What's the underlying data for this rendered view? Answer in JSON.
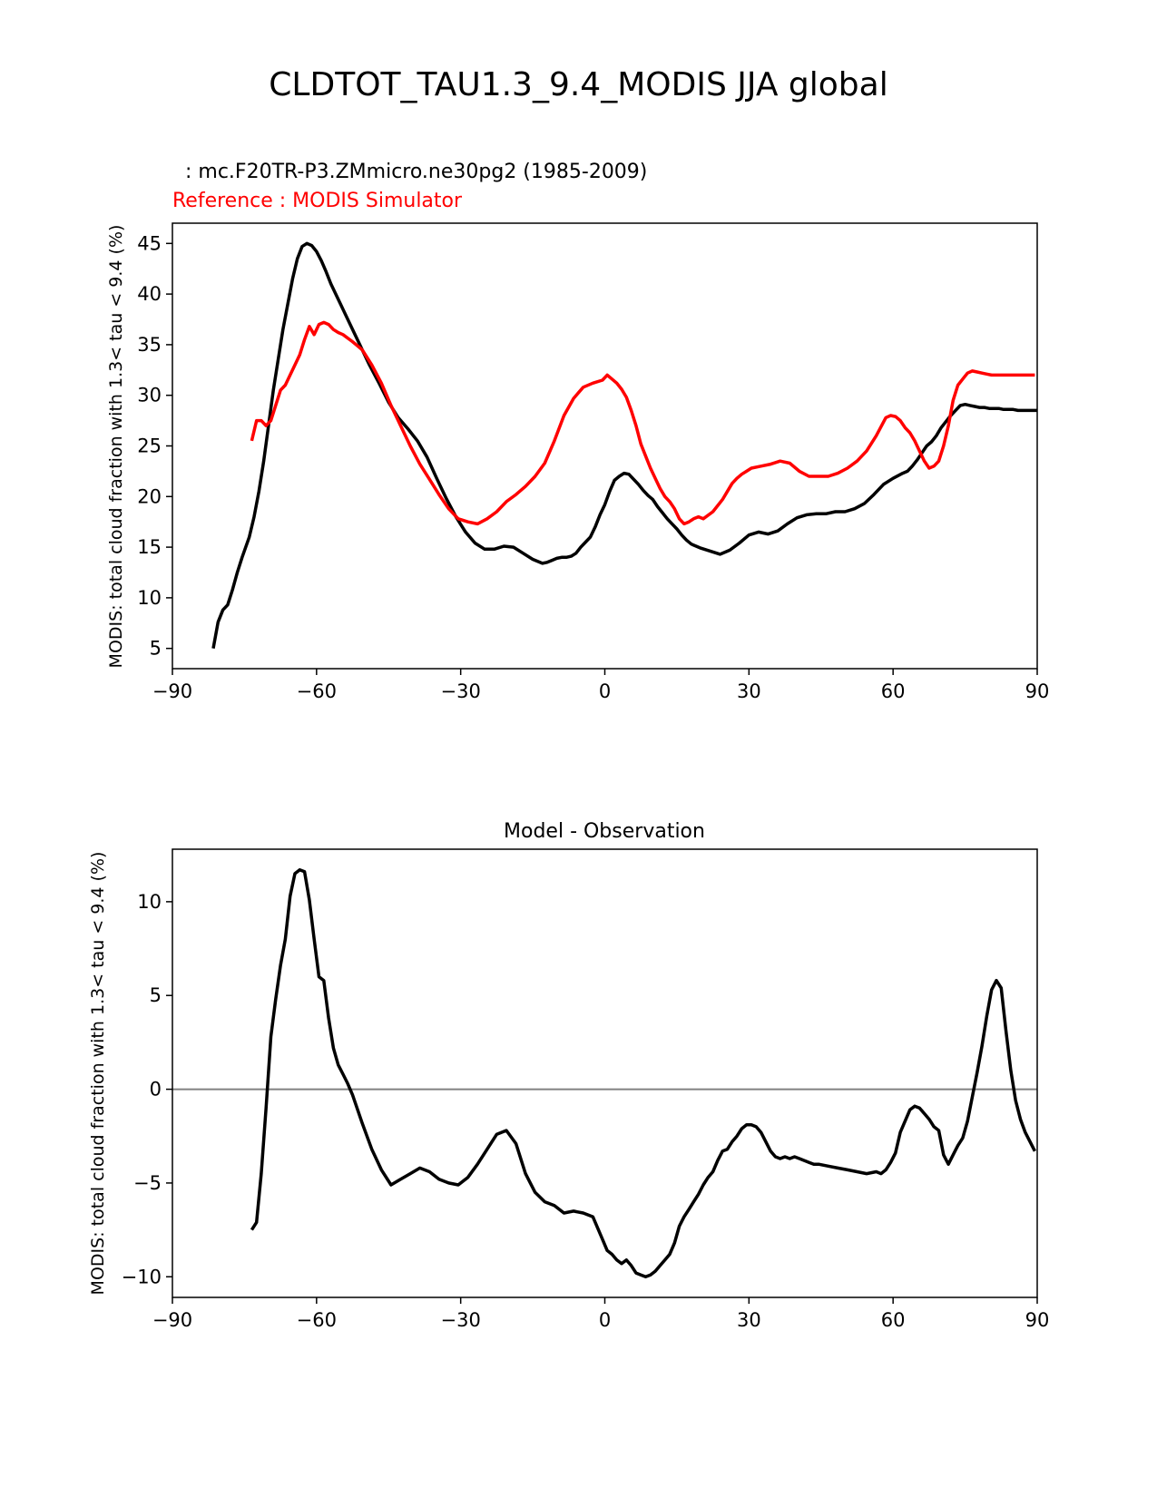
{
  "figure": {
    "title": "CLDTOT_TAU1.3_9.4_MODIS JJA global"
  },
  "chart_data": [
    {
      "type": "line",
      "test_label": " : mc.F20TR-P3.ZMmicro.ne30pg2 (1985-2009)",
      "reference_label": "Reference : MODIS Simulator",
      "xlabel": "",
      "ylabel": "MODIS: total cloud fraction with 1.3< tau < 9.4 (%)",
      "xlim": [
        -90,
        90
      ],
      "ylim": [
        3,
        47
      ],
      "xticks": [
        -90,
        -60,
        -30,
        0,
        30,
        60,
        90
      ],
      "yticks": [
        5,
        10,
        15,
        20,
        25,
        30,
        35,
        40,
        45
      ],
      "colors": {
        "test": "#000000",
        "reference": "#ff0000"
      },
      "series": [
        {
          "role": "test",
          "x": [
            -81.5,
            -80.5,
            -79.5,
            -78.5,
            -77.5,
            -76.5,
            -75.5,
            -74,
            -73,
            -72,
            -71,
            -70,
            -69,
            -68,
            -67,
            -66,
            -65,
            -64,
            -63,
            -62,
            -61,
            -60,
            -59,
            -58,
            -57,
            -55,
            -53,
            -51,
            -49,
            -47,
            -45,
            -43,
            -41,
            -39,
            -37,
            -35,
            -33,
            -31,
            -29,
            -27,
            -25,
            -23,
            -21,
            -19,
            -17,
            -15,
            -13,
            -12,
            -11,
            -10,
            -9,
            -8,
            -7,
            -6,
            -5,
            -4,
            -3,
            -2,
            -1,
            0,
            1,
            2,
            3,
            4,
            5,
            6,
            7,
            8,
            9,
            10,
            11,
            12,
            13,
            14,
            15,
            16,
            17,
            18,
            19,
            20,
            22,
            24,
            26,
            28,
            30,
            32,
            34,
            36,
            38,
            40,
            42,
            44,
            46,
            48,
            50,
            52,
            54,
            56,
            58,
            60,
            62,
            63,
            64,
            65,
            66,
            67,
            68,
            69,
            70,
            71,
            72,
            73,
            74,
            75,
            76,
            77,
            78,
            79,
            80,
            81,
            82,
            83,
            84,
            85,
            86,
            87,
            88,
            89,
            90
          ],
          "values": [
            5.0,
            7.6,
            8.8,
            9.3,
            10.8,
            12.5,
            14.0,
            16.0,
            18.0,
            20.5,
            23.5,
            27.0,
            30.5,
            33.5,
            36.5,
            39.0,
            41.5,
            43.5,
            44.7,
            45.0,
            44.8,
            44.2,
            43.3,
            42.2,
            41.0,
            39.0,
            37.0,
            35.0,
            33.0,
            31.2,
            29.3,
            27.8,
            26.7,
            25.5,
            23.9,
            21.8,
            19.8,
            18.0,
            16.5,
            15.4,
            14.8,
            14.8,
            15.1,
            15.0,
            14.4,
            13.8,
            13.4,
            13.5,
            13.7,
            13.9,
            14.0,
            14.0,
            14.1,
            14.4,
            15.0,
            15.5,
            16.0,
            17.0,
            18.2,
            19.2,
            20.5,
            21.6,
            22.0,
            22.3,
            22.2,
            21.7,
            21.2,
            20.6,
            20.1,
            19.7,
            19.0,
            18.4,
            17.8,
            17.3,
            16.8,
            16.2,
            15.7,
            15.3,
            15.1,
            14.9,
            14.6,
            14.3,
            14.7,
            15.4,
            16.2,
            16.5,
            16.3,
            16.6,
            17.3,
            17.9,
            18.2,
            18.3,
            18.3,
            18.5,
            18.5,
            18.8,
            19.3,
            20.2,
            21.2,
            21.8,
            22.3,
            22.5,
            23.0,
            23.6,
            24.3,
            25.0,
            25.4,
            26.0,
            26.8,
            27.4,
            28.0,
            28.5,
            29.0,
            29.1,
            29.0,
            28.9,
            28.8,
            28.8,
            28.7,
            28.7,
            28.7,
            28.6,
            28.6,
            28.6,
            28.5,
            28.5,
            28.5,
            28.5,
            28.5
          ]
        },
        {
          "role": "reference",
          "x": [
            -73.5,
            -72.5,
            -71.5,
            -70.5,
            -69.5,
            -68.5,
            -67.5,
            -66.5,
            -65.5,
            -64.5,
            -63.5,
            -62.5,
            -61.5,
            -60.5,
            -59.5,
            -58.5,
            -57.5,
            -56.5,
            -55.5,
            -54.5,
            -52.5,
            -50.5,
            -48.5,
            -46.5,
            -44.5,
            -42.5,
            -40.5,
            -38.5,
            -36.5,
            -34.5,
            -32.5,
            -30.5,
            -28.5,
            -26.5,
            -24.5,
            -22.5,
            -20.5,
            -18.5,
            -16.5,
            -14.5,
            -12.5,
            -10.5,
            -8.5,
            -6.5,
            -4.5,
            -2.5,
            -0.5,
            0.5,
            1.5,
            2.5,
            3.5,
            4.5,
            5.5,
            6.5,
            7.5,
            8.5,
            9.5,
            10.5,
            11.5,
            12.5,
            13.5,
            14.5,
            15.5,
            16.5,
            17.5,
            18.5,
            19.5,
            20.5,
            22.5,
            24.5,
            25.5,
            26.5,
            27.5,
            28.5,
            29.5,
            30.5,
            32.5,
            34.5,
            36.5,
            38.5,
            40.5,
            42.5,
            44.5,
            46.5,
            48.5,
            50.5,
            52.5,
            54.5,
            56.5,
            58.5,
            59.5,
            60.5,
            61.5,
            62.5,
            63.5,
            64.5,
            65.5,
            66.5,
            67.5,
            68.5,
            69.5,
            70.5,
            71.5,
            72.5,
            73.5,
            74.5,
            75.5,
            76.5,
            77.5,
            78.5,
            79.5,
            80.5,
            81.5,
            82.5,
            83.5,
            84.5,
            85.5,
            86.5,
            87.5,
            88.5,
            89.5
          ],
          "values": [
            25.5,
            27.5,
            27.5,
            27.0,
            27.5,
            29.0,
            30.5,
            31.0,
            32.0,
            33.0,
            34.0,
            35.5,
            36.8,
            36.0,
            37.0,
            37.2,
            37.0,
            36.5,
            36.2,
            36.0,
            35.3,
            34.5,
            33.0,
            31.2,
            29.0,
            27.0,
            25.0,
            23.2,
            21.7,
            20.2,
            18.8,
            17.8,
            17.5,
            17.3,
            17.8,
            18.5,
            19.5,
            20.2,
            21.0,
            22.0,
            23.3,
            25.5,
            28.0,
            29.7,
            30.8,
            31.2,
            31.5,
            32.0,
            31.6,
            31.2,
            30.6,
            29.8,
            28.5,
            27.0,
            25.2,
            24.0,
            22.8,
            21.8,
            20.8,
            20.0,
            19.5,
            18.8,
            17.8,
            17.3,
            17.5,
            17.8,
            18.0,
            17.8,
            18.5,
            19.7,
            20.5,
            21.3,
            21.8,
            22.2,
            22.5,
            22.8,
            23.0,
            23.2,
            23.5,
            23.3,
            22.5,
            22.0,
            22.0,
            22.0,
            22.3,
            22.8,
            23.5,
            24.5,
            26.0,
            27.8,
            28.0,
            27.9,
            27.5,
            26.8,
            26.3,
            25.5,
            24.5,
            23.5,
            22.8,
            23.0,
            23.5,
            25.0,
            27.0,
            29.5,
            31.0,
            31.6,
            32.2,
            32.4,
            32.3,
            32.2,
            32.1,
            32.0,
            32.0,
            32.0,
            32.0,
            32.0,
            32.0,
            32.0,
            32.0,
            32.0,
            32.0
          ]
        }
      ]
    },
    {
      "type": "line",
      "title": "Model - Observation",
      "xlabel": "",
      "ylabel": "MODIS: total cloud fraction with 1.3< tau < 9.4 (%)",
      "xlim": [
        -90,
        90
      ],
      "ylim": [
        -11.1,
        12.8
      ],
      "xticks": [
        -90,
        -60,
        -30,
        0,
        30,
        60,
        90
      ],
      "yticks": [
        -10,
        -5,
        0,
        5,
        10
      ],
      "zero_line_color": "#808080",
      "series": [
        {
          "role": "difference",
          "x": [
            -73.5,
            -72.5,
            -71.5,
            -70.5,
            -69.5,
            -68.5,
            -67.5,
            -66.5,
            -65.5,
            -64.5,
            -63.5,
            -62.5,
            -61.5,
            -60.5,
            -59.5,
            -58.5,
            -57.5,
            -56.5,
            -55.5,
            -54.5,
            -53.5,
            -52.5,
            -50.5,
            -48.5,
            -46.5,
            -44.5,
            -42.5,
            -40.5,
            -38.5,
            -36.5,
            -34.5,
            -32.5,
            -30.5,
            -28.5,
            -26.5,
            -24.5,
            -22.5,
            -20.5,
            -18.5,
            -16.5,
            -14.5,
            -12.5,
            -10.5,
            -8.5,
            -6.5,
            -4.5,
            -2.5,
            -0.5,
            0.5,
            1.5,
            2.5,
            3.5,
            4.5,
            5.5,
            6.5,
            7.5,
            8.5,
            9.5,
            10.5,
            11.5,
            12.5,
            13.5,
            14.5,
            15.5,
            16.5,
            17.5,
            18.5,
            19.5,
            20.5,
            21.5,
            22.5,
            23.5,
            24.5,
            25.5,
            26.5,
            27.5,
            28.5,
            29.5,
            30.5,
            31.5,
            32.5,
            33.5,
            34.5,
            35.5,
            36.5,
            37.5,
            38.5,
            39.5,
            40.5,
            41.5,
            42.5,
            43.5,
            44.5,
            46.5,
            48.5,
            50.5,
            52.5,
            54.5,
            56.5,
            57.5,
            58.5,
            59.5,
            60.5,
            61.5,
            62.5,
            63.5,
            64.5,
            65.5,
            66.5,
            67.5,
            68.5,
            69.5,
            70.5,
            71.5,
            72.5,
            73.5,
            74.5,
            75.5,
            76.5,
            77.5,
            78.5,
            79.5,
            80.5,
            81.5,
            82.5,
            83.5,
            84.5,
            85.5,
            86.5,
            87.5,
            88.5,
            89.5
          ],
          "values": [
            -7.5,
            -7.1,
            -4.5,
            -1.0,
            2.8,
            4.8,
            6.6,
            8.0,
            10.3,
            11.5,
            11.7,
            11.6,
            10.1,
            8.0,
            6.0,
            5.8,
            3.8,
            2.2,
            1.3,
            0.8,
            0.3,
            -0.3,
            -1.8,
            -3.2,
            -4.3,
            -5.1,
            -4.8,
            -4.5,
            -4.2,
            -4.4,
            -4.8,
            -5.0,
            -5.1,
            -4.7,
            -4.0,
            -3.2,
            -2.4,
            -2.2,
            -2.9,
            -4.5,
            -5.5,
            -6.0,
            -6.2,
            -6.6,
            -6.5,
            -6.6,
            -6.8,
            -8.0,
            -8.6,
            -8.8,
            -9.1,
            -9.3,
            -9.1,
            -9.4,
            -9.8,
            -9.9,
            -10.0,
            -9.9,
            -9.7,
            -9.4,
            -9.1,
            -8.8,
            -8.2,
            -7.3,
            -6.8,
            -6.4,
            -6.0,
            -5.6,
            -5.1,
            -4.7,
            -4.4,
            -3.8,
            -3.3,
            -3.2,
            -2.8,
            -2.5,
            -2.1,
            -1.9,
            -1.9,
            -2.0,
            -2.3,
            -2.8,
            -3.3,
            -3.6,
            -3.7,
            -3.6,
            -3.7,
            -3.6,
            -3.7,
            -3.8,
            -3.9,
            -4.0,
            -4.0,
            -4.1,
            -4.2,
            -4.3,
            -4.4,
            -4.5,
            -4.4,
            -4.5,
            -4.3,
            -3.9,
            -3.4,
            -2.3,
            -1.7,
            -1.1,
            -0.9,
            -1.0,
            -1.3,
            -1.6,
            -2.0,
            -2.2,
            -3.5,
            -4.0,
            -3.5,
            -3.0,
            -2.6,
            -1.7,
            -0.4,
            0.9,
            2.3,
            3.9,
            5.3,
            5.8,
            5.4,
            3.1,
            1.0,
            -0.6,
            -1.6,
            -2.3,
            -2.8,
            -3.3
          ]
        }
      ]
    }
  ]
}
